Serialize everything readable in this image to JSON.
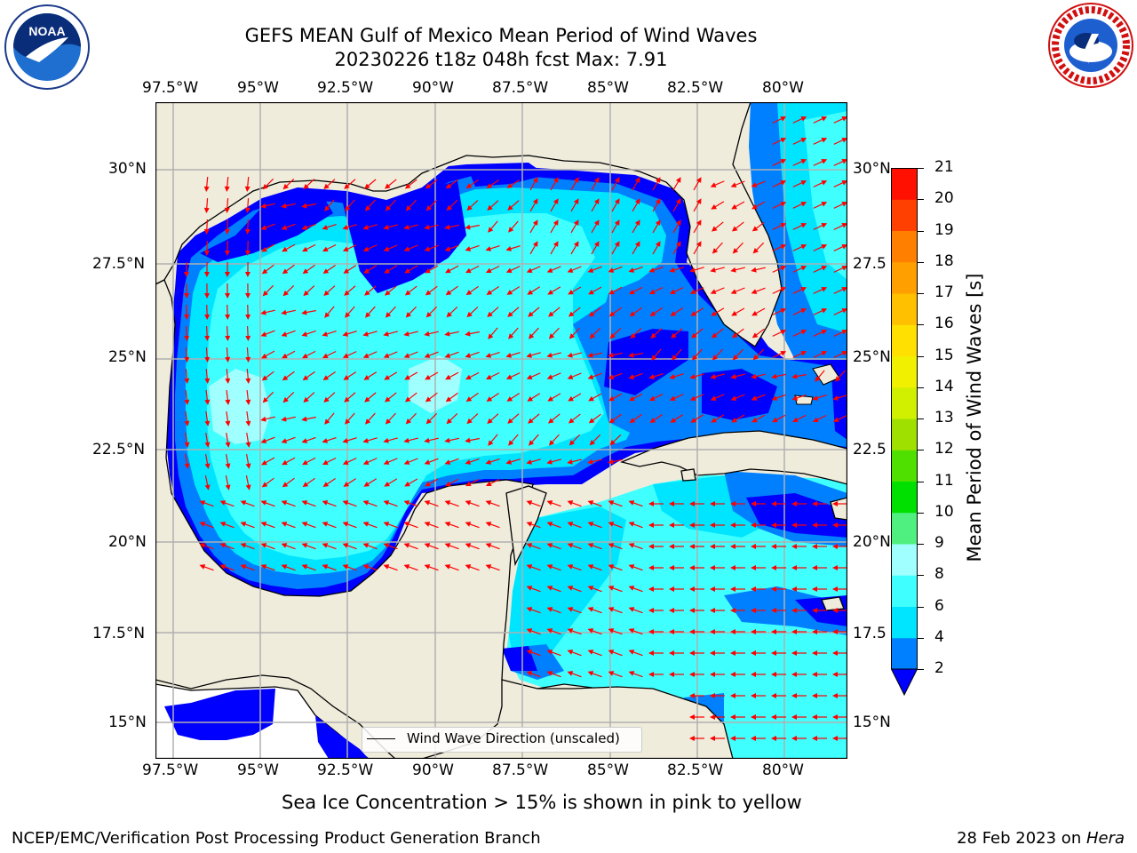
{
  "title": {
    "line1": "GEFS MEAN Gulf of Mexico Mean Period of Wind Waves",
    "line2": "20230226 t18z 048h fcst   Max: 7.91"
  },
  "logos": {
    "left": "noaa-logo",
    "left_text": "NOAA",
    "right": "nws-logo",
    "right_text": "NATIONAL WEATHER SERVICE"
  },
  "axes": {
    "lon_ticks": [
      "97.5°W",
      "95°W",
      "92.5°W",
      "90°W",
      "87.5°W",
      "85°W",
      "82.5°W",
      "80°W"
    ],
    "lat_ticks": [
      "30°N",
      "27.5°N",
      "25°N",
      "22.5°N",
      "20°N",
      "17.5°N",
      "15°N"
    ],
    "lat_ticks_right": [
      "30°N",
      "27.5",
      "25°N",
      "22.5",
      "20°N",
      "17.5",
      "15°N"
    ]
  },
  "colorbar": {
    "label": "Mean Period of Wind Waves [s]",
    "ticks": [
      "2",
      "4",
      "6",
      "8",
      "9",
      "10",
      "11",
      "12",
      "13",
      "14",
      "15",
      "16",
      "17",
      "18",
      "19",
      "20",
      "21"
    ],
    "colors": [
      "#0000ff",
      "#0080ff",
      "#00e5ff",
      "#40ffff",
      "#a0ffff",
      "#50f080",
      "#00e000",
      "#50e000",
      "#a0e000",
      "#d0f000",
      "#f0f000",
      "#ffe000",
      "#ffc000",
      "#ffa000",
      "#ff8000",
      "#ff4000",
      "#ff1000",
      "#ff0000"
    ]
  },
  "legend": {
    "label": "Wind Wave Direction (unscaled)"
  },
  "note": "Sea Ice Concentration > 15% is shown in pink to yellow",
  "footer": {
    "left": "NCEP/EMC/Verification Post Processing Product Generation Branch",
    "right_date": "28 Feb 2023 on ",
    "right_machine": "Hera"
  },
  "map_colors": {
    "land": "#efecdc",
    "lvl_2": "#0000ff",
    "lvl_4": "#0080ff",
    "lvl_6": "#00e5ff",
    "lvl_8": "#40ffff",
    "lvl_9": "#a0ffff",
    "arrow": "#ff0000"
  }
}
